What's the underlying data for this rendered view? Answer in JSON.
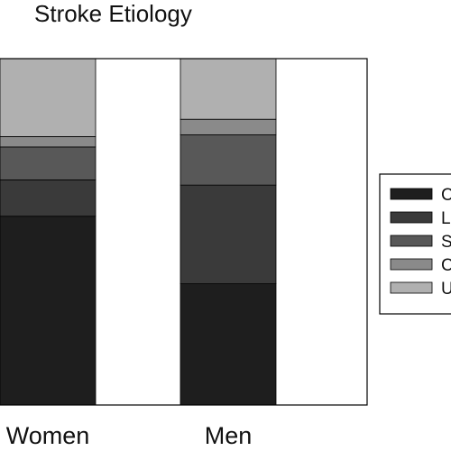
{
  "chart_data": {
    "type": "bar",
    "stacked": true,
    "normalized": true,
    "title": "Stroke Etiology",
    "xlabel": "",
    "ylabel": "",
    "ylim": [
      0,
      1
    ],
    "categories": [
      "Women",
      "Men"
    ],
    "series": [
      {
        "name": "C",
        "color": "#1e1e1e",
        "values": [
          0.545,
          0.35
        ]
      },
      {
        "name": "L",
        "color": "#3a3a3a",
        "values": [
          0.105,
          0.285
        ]
      },
      {
        "name": "S",
        "color": "#585858",
        "values": [
          0.095,
          0.145
        ]
      },
      {
        "name": "C",
        "color": "#8a8a8a",
        "values": [
          0.03,
          0.045
        ]
      },
      {
        "name": "U",
        "color": "#b0b0b0",
        "values": [
          0.225,
          0.175
        ]
      }
    ],
    "legend": {
      "placement": "right"
    }
  }
}
